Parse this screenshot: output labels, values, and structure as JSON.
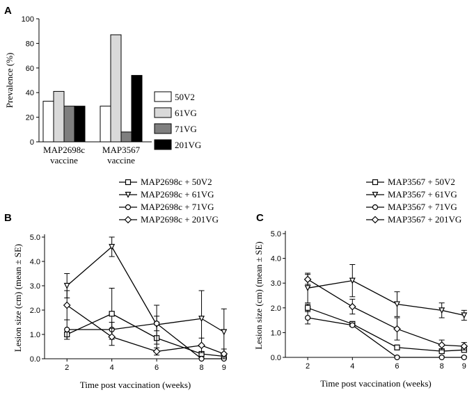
{
  "chart_data": [
    {
      "panel": "A",
      "type": "bar",
      "categories": [
        "MAP2698c vaccine",
        "MAP3567 vaccine"
      ],
      "category_lines": [
        [
          "MAP2698c",
          "vaccine"
        ],
        [
          "MAP3567",
          "vaccine"
        ]
      ],
      "series": [
        {
          "name": "50V2",
          "color": "#ffffff",
          "values": [
            33,
            29
          ]
        },
        {
          "name": "61VG",
          "color": "#d9d9d9",
          "values": [
            41,
            87
          ]
        },
        {
          "name": "71VG",
          "color": "#7f7f7f",
          "values": [
            29,
            8
          ]
        },
        {
          "name": "201VG",
          "color": "#000000",
          "values": [
            29,
            54
          ]
        }
      ],
      "ylabel": "Prevalence (%)",
      "ylim": [
        0,
        100
      ],
      "yticks": [
        0,
        20,
        40,
        60,
        80,
        100
      ],
      "legend": "right"
    },
    {
      "panel": "B",
      "type": "line",
      "x": [
        2,
        4,
        6,
        8,
        9
      ],
      "xlabel": "Time post vaccination (weeks)",
      "ylabel": "Lesion size (cm) (mean ± SE)",
      "ylim": [
        0,
        5
      ],
      "yticks": [
        "0.0",
        "1.0",
        "2.0",
        "3.0",
        "4.0",
        "5.0"
      ],
      "xticks": [
        "2",
        "4",
        "6",
        "8",
        "9"
      ],
      "series": [
        {
          "name": "MAP2698c + 50V2",
          "marker": "square",
          "values": [
            1.0,
            1.85,
            0.85,
            0.2,
            0.1
          ],
          "errors": [
            0.2,
            1.05,
            0.55,
            0.1,
            0.1
          ]
        },
        {
          "name": "MAP2698c + 61VG",
          "marker": "triangle-down",
          "values": [
            3.0,
            4.6,
            1.4,
            1.65,
            1.1
          ],
          "errors": [
            0.5,
            0.4,
            0.8,
            1.15,
            0.95
          ]
        },
        {
          "name": "MAP2698c + 71VG",
          "marker": "circle",
          "values": [
            1.2,
            1.2,
            1.45,
            0.0,
            0.0
          ],
          "errors": [
            0.4,
            0.3,
            0.3,
            0.05,
            0.05
          ]
        },
        {
          "name": "MAP2698c + 201VG",
          "marker": "diamond",
          "values": [
            2.2,
            0.9,
            0.3,
            0.55,
            0.2
          ],
          "errors": [
            0.6,
            0.35,
            0.15,
            0.3,
            0.2
          ]
        }
      ]
    },
    {
      "panel": "C",
      "type": "line",
      "x": [
        2,
        4,
        6,
        8,
        9
      ],
      "xlabel": "Time post vaccination (weeks)",
      "ylabel": "Lesion size (cm) (mean ± SE)",
      "ylim": [
        0,
        5
      ],
      "yticks": [
        "0.0",
        "1.0",
        "2.0",
        "3.0",
        "4.0",
        "5.0"
      ],
      "xticks": [
        "2",
        "4",
        "6",
        "8",
        "9"
      ],
      "series": [
        {
          "name": "MAP3567 + 50V2",
          "marker": "square",
          "values": [
            2.0,
            1.35,
            0.4,
            0.25,
            0.3
          ],
          "errors": [
            0.15,
            0.1,
            0.1,
            0.05,
            0.05
          ]
        },
        {
          "name": "MAP3567 + 61VG",
          "marker": "triangle-down",
          "values": [
            2.8,
            3.1,
            2.15,
            1.9,
            1.7
          ],
          "errors": [
            0.6,
            0.65,
            0.5,
            0.3,
            0.2
          ]
        },
        {
          "name": "MAP3567 + 71VG",
          "marker": "circle",
          "values": [
            1.6,
            1.3,
            0.0,
            0.0,
            0.0
          ],
          "errors": [
            0.25,
            0.05,
            0.05,
            0.05,
            0.05
          ]
        },
        {
          "name": "MAP3567 + 201VG",
          "marker": "diamond",
          "values": [
            3.15,
            2.05,
            1.15,
            0.5,
            0.45
          ],
          "errors": [
            0.2,
            0.3,
            0.45,
            0.2,
            0.15
          ]
        }
      ]
    }
  ]
}
